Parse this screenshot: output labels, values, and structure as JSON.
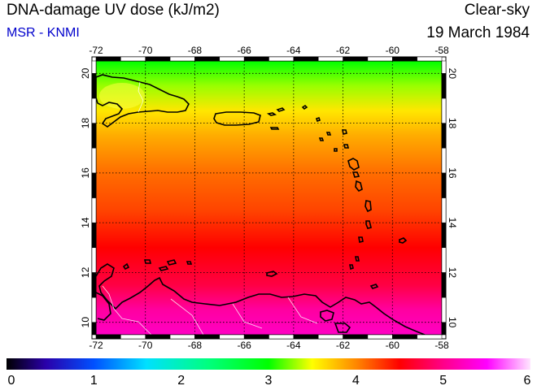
{
  "header": {
    "title": "DNA-damage UV dose (kJ/m2)",
    "credit": "MSR - KNMI",
    "condition": "Clear-sky",
    "date": "19 March 1984"
  },
  "map": {
    "lon_ticks": [
      "-72",
      "-70",
      "-68",
      "-66",
      "-64",
      "-62",
      "-60",
      "-58"
    ],
    "lat_ticks": [
      "20",
      "18",
      "16",
      "14",
      "12",
      "10"
    ],
    "lon_range": [
      -72,
      -58
    ],
    "lat_range": [
      9.5,
      20.5
    ],
    "grid": true,
    "grid_style": "dotted",
    "field_by_latitude": [
      {
        "lat": 20.5,
        "dose": 3.0
      },
      {
        "lat": 19.5,
        "dose": 3.3
      },
      {
        "lat": 18.5,
        "dose": 3.6
      },
      {
        "lat": 17.5,
        "dose": 3.85
      },
      {
        "lat": 16.0,
        "dose": 4.1
      },
      {
        "lat": 14.5,
        "dose": 4.25
      },
      {
        "lat": 13.0,
        "dose": 4.5
      },
      {
        "lat": 11.5,
        "dose": 4.75
      },
      {
        "lat": 10.5,
        "dose": 5.1
      },
      {
        "lat": 9.5,
        "dose": 5.25
      }
    ],
    "coastline_color": "#000000",
    "border_color": "#ffffff"
  },
  "colorbar": {
    "labels": [
      "0",
      "1",
      "2",
      "3",
      "4",
      "5",
      "6"
    ],
    "range": [
      0,
      6
    ],
    "stops": [
      {
        "value": 0,
        "color": "#000000"
      },
      {
        "value": 0.45,
        "color": "#2a00aa"
      },
      {
        "value": 1.0,
        "color": "#0050ff"
      },
      {
        "value": 1.6,
        "color": "#00e0ff"
      },
      {
        "value": 2.3,
        "color": "#00ff80"
      },
      {
        "value": 3.0,
        "color": "#00ff00"
      },
      {
        "value": 3.5,
        "color": "#ffff00"
      },
      {
        "value": 4.0,
        "color": "#ff8800"
      },
      {
        "value": 4.5,
        "color": "#ff0000"
      },
      {
        "value": 5.0,
        "color": "#ff0088"
      },
      {
        "value": 5.5,
        "color": "#ff00ff"
      },
      {
        "value": 6.0,
        "color": "#ffe6ff"
      }
    ]
  }
}
